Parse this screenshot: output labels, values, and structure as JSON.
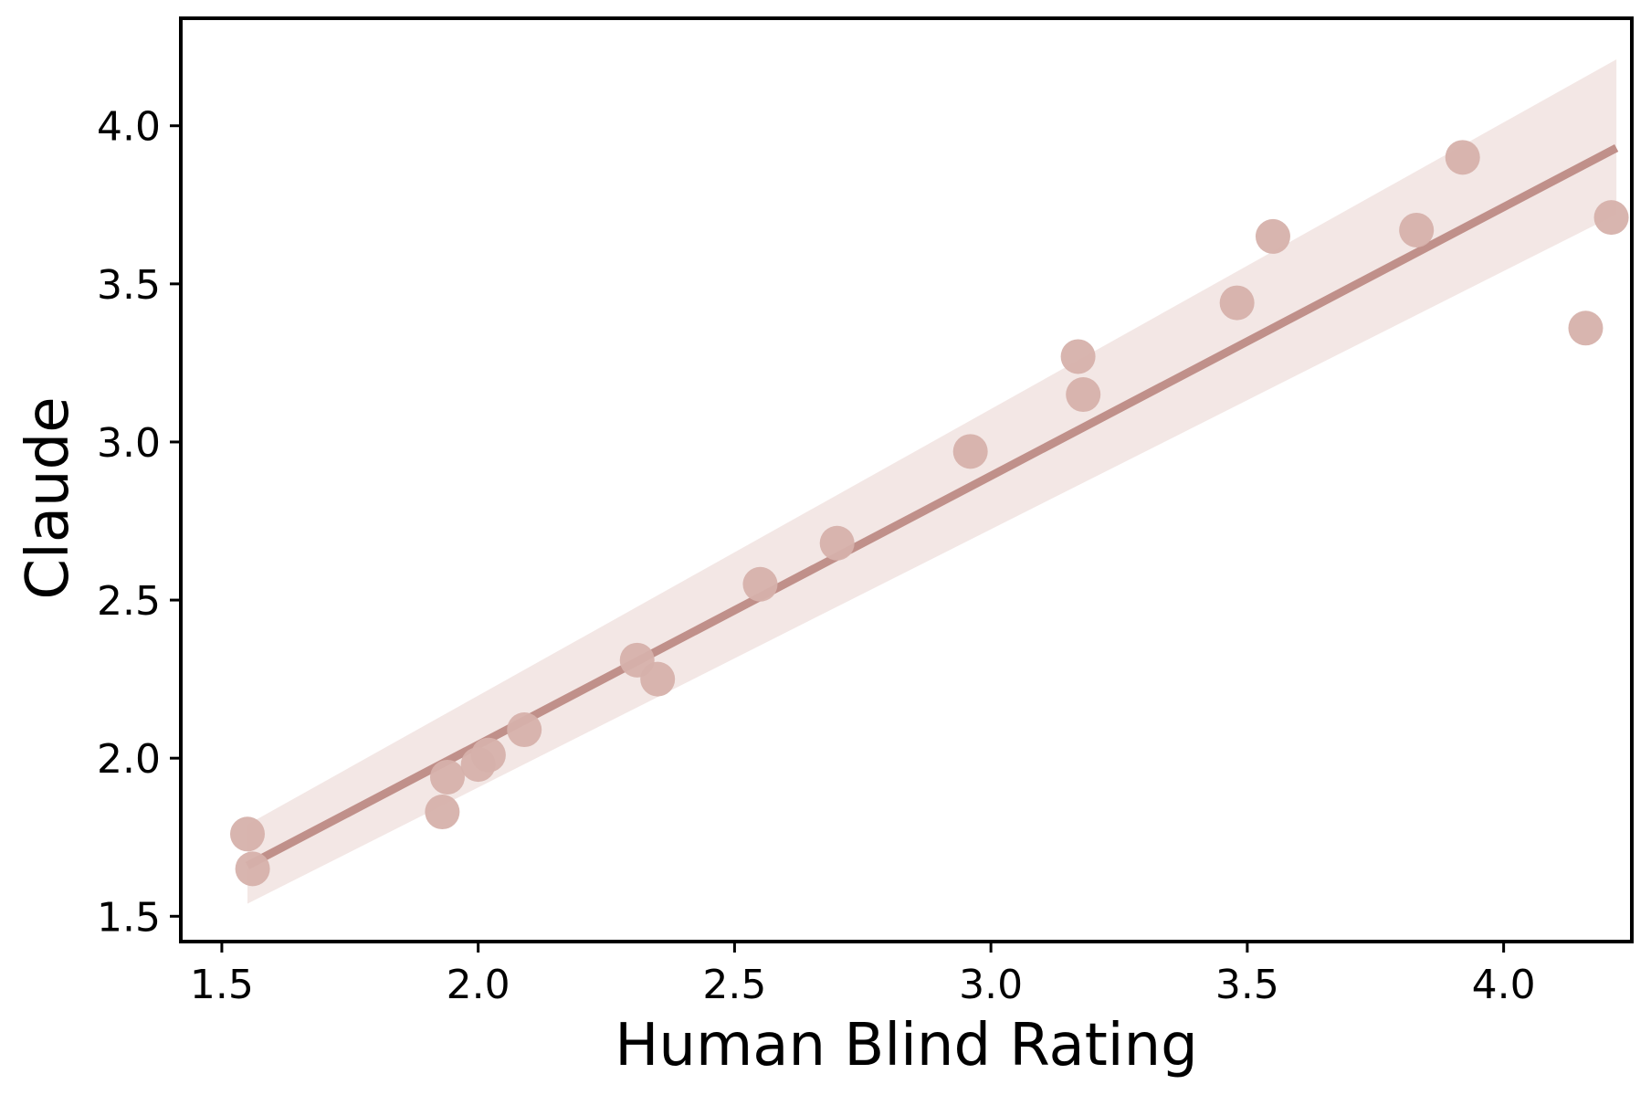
{
  "chart_data": {
    "type": "scatter",
    "xlabel": "Human Blind Rating",
    "ylabel": "Claude",
    "xlim": [
      1.42,
      4.25
    ],
    "ylim": [
      1.42,
      4.34
    ],
    "xticks": [
      "1.5",
      "2.0",
      "2.5",
      "3.0",
      "3.5",
      "4.0"
    ],
    "yticks": [
      "1.5",
      "2.0",
      "2.5",
      "3.0",
      "3.5",
      "4.0"
    ],
    "grid": false,
    "colors": {
      "points": "#d6b1ab",
      "line": "#c0908a",
      "band": "#f3e7e5"
    },
    "points": [
      {
        "x": 1.55,
        "y": 1.76
      },
      {
        "x": 1.56,
        "y": 1.65
      },
      {
        "x": 1.93,
        "y": 1.83
      },
      {
        "x": 1.94,
        "y": 1.94
      },
      {
        "x": 2.0,
        "y": 1.98
      },
      {
        "x": 2.02,
        "y": 2.01
      },
      {
        "x": 2.09,
        "y": 2.09
      },
      {
        "x": 2.31,
        "y": 2.31
      },
      {
        "x": 2.35,
        "y": 2.25
      },
      {
        "x": 2.55,
        "y": 2.55
      },
      {
        "x": 2.7,
        "y": 2.68
      },
      {
        "x": 2.96,
        "y": 2.97
      },
      {
        "x": 3.17,
        "y": 3.27
      },
      {
        "x": 3.18,
        "y": 3.15
      },
      {
        "x": 3.48,
        "y": 3.44
      },
      {
        "x": 3.55,
        "y": 3.65
      },
      {
        "x": 3.83,
        "y": 3.67
      },
      {
        "x": 3.92,
        "y": 3.9
      },
      {
        "x": 4.16,
        "y": 3.36
      },
      {
        "x": 4.21,
        "y": 3.71
      }
    ],
    "regression": {
      "x": [
        1.55,
        4.22
      ],
      "y": [
        1.66,
        3.93
      ],
      "band_upper": [
        1.79,
        4.21
      ],
      "band_lower": [
        1.54,
        3.72
      ]
    }
  }
}
